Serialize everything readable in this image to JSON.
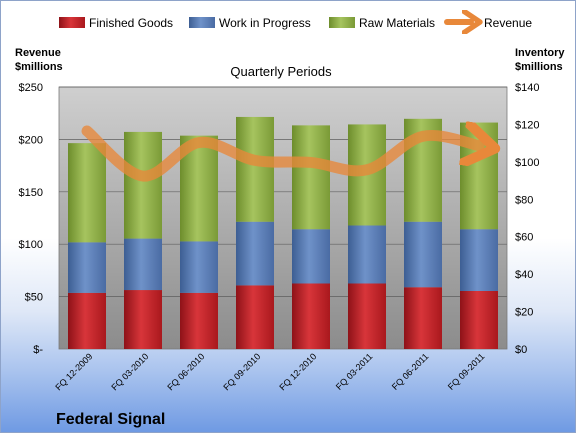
{
  "chart_data": {
    "type": "bar",
    "stacked": true,
    "title": "Quarterly Periods",
    "company": "Federal Signal",
    "ylabel_left": [
      "Revenue",
      "$millions"
    ],
    "ylabel_right": [
      "Inventory",
      "$millions"
    ],
    "categories": [
      "FQ 12-2009",
      "FQ 03-2010",
      "FQ 06-2010",
      "FQ 09-2010",
      "FQ 12-2010",
      "FQ 03-2011",
      "FQ 06-2011",
      "FQ 09-2011"
    ],
    "ylim_left": [
      0,
      250
    ],
    "ylim_right": [
      0,
      140
    ],
    "left_ticks": [
      {
        "value": 0,
        "label": "$-"
      },
      {
        "value": 50,
        "label": "$50"
      },
      {
        "value": 100,
        "label": "$100"
      },
      {
        "value": 150,
        "label": "$150"
      },
      {
        "value": 200,
        "label": "$200"
      },
      {
        "value": 250,
        "label": "$250"
      }
    ],
    "right_ticks": [
      {
        "value": 0,
        "label": "$0"
      },
      {
        "value": 20,
        "label": "$20"
      },
      {
        "value": 40,
        "label": "$40"
      },
      {
        "value": 60,
        "label": "$60"
      },
      {
        "value": 80,
        "label": "$80"
      },
      {
        "value": 100,
        "label": "$100"
      },
      {
        "value": 120,
        "label": "$120"
      },
      {
        "value": 140,
        "label": "$140"
      }
    ],
    "series": [
      {
        "name": "Finished Goods",
        "axis": "right",
        "color": "#c0262b",
        "values": [
          30,
          31.5,
          30,
          34,
          35,
          35,
          33,
          31
        ]
      },
      {
        "name": "Work in Progress",
        "axis": "right",
        "color": "#5b7fb8",
        "values": [
          27,
          27.5,
          27.5,
          34,
          29,
          31,
          35,
          33
        ]
      },
      {
        "name": "Raw Materials",
        "axis": "right",
        "color": "#8fb04a",
        "values": [
          53,
          57,
          56.5,
          56,
          55.5,
          54,
          55,
          57
        ]
      },
      {
        "name": "Revenue",
        "axis": "left",
        "type": "line",
        "color": "#e8883a",
        "values": [
          208,
          165,
          197,
          180,
          178,
          171,
          203,
          194
        ]
      }
    ],
    "grid": true,
    "legend": "top"
  }
}
